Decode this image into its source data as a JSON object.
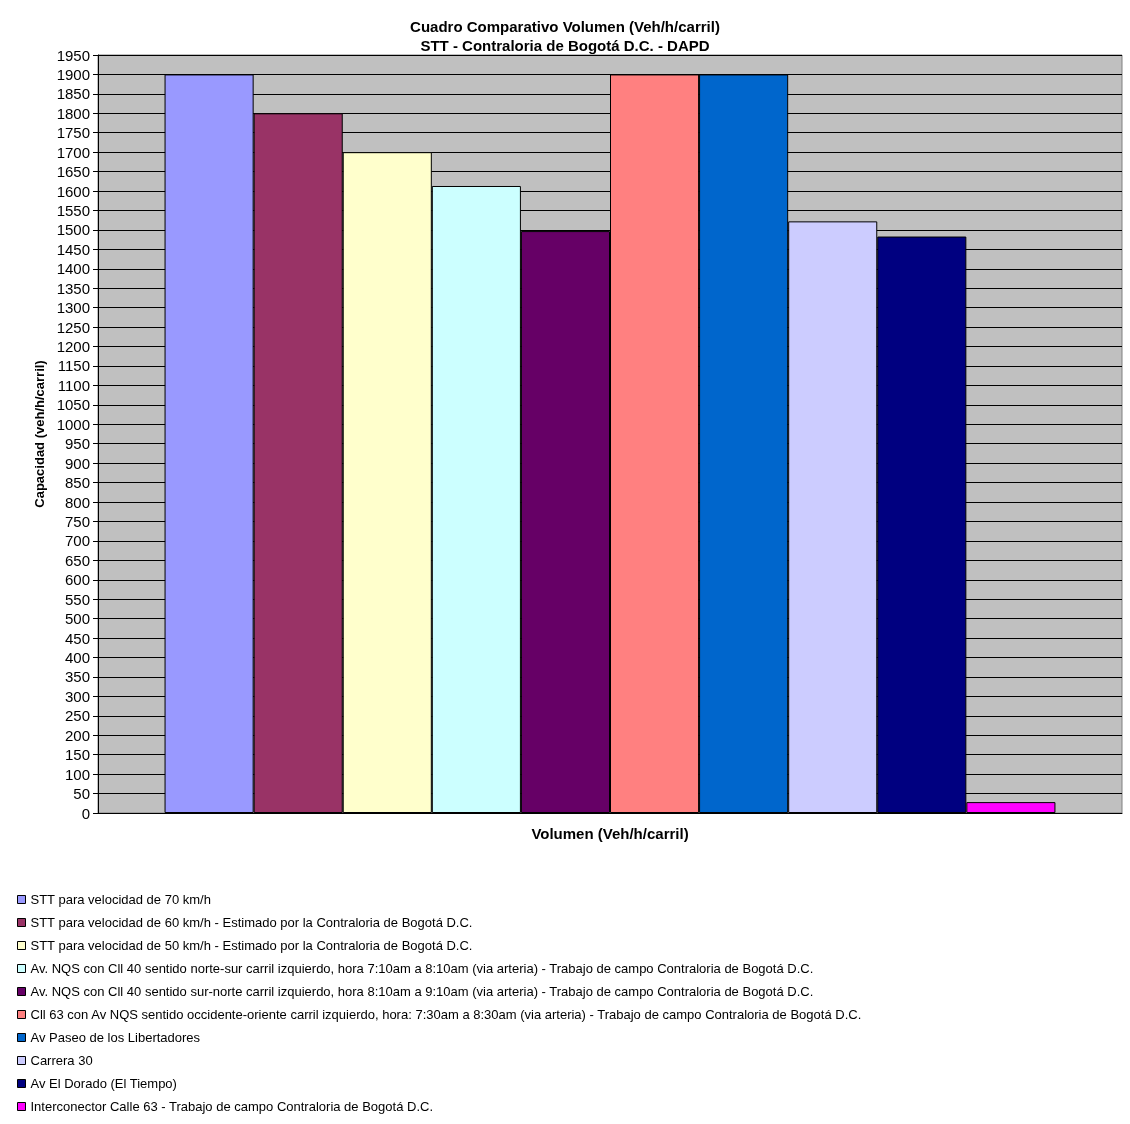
{
  "chart_data": {
    "type": "bar",
    "title": "Cuadro Comparativo Volumen (Veh/h/carril)",
    "subtitle": "STT - Contraloria de Bogotá D.C. - DAPD",
    "xlabel": "Volumen (Veh/h/carril)",
    "ylabel": "Capacidad (veh/h/carril)",
    "categories": [
      null
    ],
    "series": [
      {
        "name": "STT para velocidad de 70 km/h",
        "color": "#9999ff",
        "values": [
          1900
        ]
      },
      {
        "name": "STT para velocidad de 60 km/h - Estimado por la Contraloria de Bogotá D.C.",
        "color": "#993366",
        "values": [
          1800
        ]
      },
      {
        "name": "STT para velocidad de 50 km/h - Estimado por la Contraloria de Bogotá D.C.",
        "color": "#ffffcc",
        "values": [
          1700
        ]
      },
      {
        "name": "Av. NQS con Cll 40 sentido norte-sur carril izquierdo, hora 7:10am a 8:10am (via arteria) - Trabajo de campo Contraloria de Bogotá D.C.",
        "color": "#ccffff",
        "values": [
          1613
        ]
      },
      {
        "name": "Av. NQS con Cll 40 sentido sur-norte carril izquierdo, hora 8:10am a 9:10am (via arteria) - Trabajo de campo Contraloria de Bogotá D.C.",
        "color": "#660066",
        "values": [
          1497
        ]
      },
      {
        "name": "Cll 63 con Av NQS sentido occidente-oriente carril izquierdo, hora: 7:30am a 8:30am (via arteria) - Trabajo de campo Contraloria de Bogotá D.C.",
        "color": "#ff8080",
        "values": [
          1900
        ]
      },
      {
        "name": "Av Paseo de los Libertadores",
        "color": "#0066cc",
        "values": [
          1900
        ]
      },
      {
        "name": "Carrera 30",
        "color": "#ccccff",
        "values": [
          1522
        ]
      },
      {
        "name": "Av El Dorado (El Tiempo)",
        "color": "#000080",
        "values": [
          1483
        ]
      },
      {
        "name": "Interconector Calle 63 - Trabajo de campo Contraloria de Bogotá D.C.",
        "color": "#ff00ff",
        "values": [
          28
        ]
      }
    ],
    "ylim": [
      0,
      1950
    ],
    "yticks": [
      0,
      50,
      100,
      150,
      200,
      250,
      300,
      350,
      400,
      450,
      500,
      550,
      600,
      650,
      700,
      750,
      800,
      850,
      900,
      950,
      1000,
      1050,
      1100,
      1150,
      1200,
      1250,
      1300,
      1350,
      1400,
      1450,
      1500,
      1550,
      1600,
      1650,
      1700,
      1750,
      1800,
      1850,
      1900,
      1950
    ],
    "grid": "y",
    "legend": "bottom"
  }
}
